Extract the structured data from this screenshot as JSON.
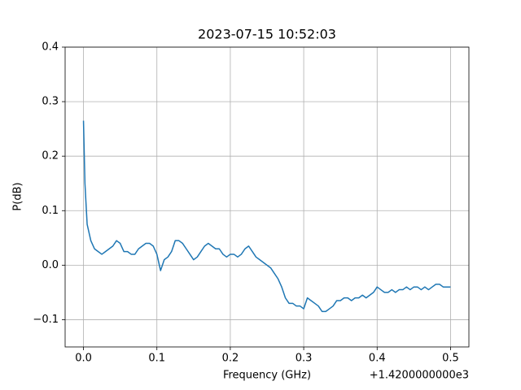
{
  "chart_data": {
    "type": "line",
    "title": "2023-07-15 10:52:03",
    "x_label": "Frequency (GHz)",
    "y_label": "P(dB)",
    "x_offset_label": "+1.4200000000e3",
    "grid": true,
    "xlim": [
      -0.025,
      0.525
    ],
    "ylim": [
      -0.15,
      0.4
    ],
    "xticks": [
      {
        "value": 0,
        "label": "0.0"
      },
      {
        "value": 0.1,
        "label": "0.1"
      },
      {
        "value": 0.2,
        "label": "0.2"
      },
      {
        "value": 0.3,
        "label": "0.3"
      },
      {
        "value": 0.4,
        "label": "0.4"
      },
      {
        "value": 0.5,
        "label": "0.5"
      }
    ],
    "yticks": [
      {
        "value": -0.1,
        "label": "−0.1"
      },
      {
        "value": 0,
        "label": "0.0"
      },
      {
        "value": 0.1,
        "label": "0.1"
      },
      {
        "value": 0.2,
        "label": "0.2"
      },
      {
        "value": 0.3,
        "label": "0.3"
      },
      {
        "value": 0.4,
        "label": "0.4"
      }
    ],
    "x": [
      0,
      0.002,
      0.005,
      0.01,
      0.015,
      0.02,
      0.025,
      0.03,
      0.035,
      0.04,
      0.045,
      0.05,
      0.055,
      0.06,
      0.065,
      0.07,
      0.075,
      0.08,
      0.085,
      0.09,
      0.095,
      0.1,
      0.105,
      0.11,
      0.115,
      0.12,
      0.125,
      0.13,
      0.135,
      0.14,
      0.145,
      0.15,
      0.155,
      0.16,
      0.165,
      0.17,
      0.175,
      0.18,
      0.185,
      0.19,
      0.195,
      0.2,
      0.205,
      0.21,
      0.215,
      0.22,
      0.225,
      0.23,
      0.235,
      0.24,
      0.245,
      0.25,
      0.255,
      0.26,
      0.265,
      0.27,
      0.275,
      0.28,
      0.285,
      0.29,
      0.295,
      0.3,
      0.305,
      0.31,
      0.315,
      0.32,
      0.325,
      0.33,
      0.335,
      0.34,
      0.345,
      0.35,
      0.355,
      0.36,
      0.365,
      0.37,
      0.375,
      0.38,
      0.385,
      0.39,
      0.395,
      0.4,
      0.405,
      0.41,
      0.415,
      0.42,
      0.425,
      0.43,
      0.435,
      0.44,
      0.445,
      0.45,
      0.455,
      0.46,
      0.465,
      0.47,
      0.475,
      0.48,
      0.485,
      0.49,
      0.495,
      0.5
    ],
    "series": [
      {
        "color": "#1f77b4",
        "values": [
          0.265,
          0.15,
          0.075,
          0.045,
          0.03,
          0.025,
          0.02,
          0.025,
          0.03,
          0.035,
          0.045,
          0.04,
          0.025,
          0.025,
          0.02,
          0.02,
          0.03,
          0.035,
          0.04,
          0.04,
          0.035,
          0.02,
          -0.01,
          0.01,
          0.015,
          0.025,
          0.045,
          0.045,
          0.04,
          0.03,
          0.02,
          0.01,
          0.015,
          0.025,
          0.035,
          0.04,
          0.035,
          0.03,
          0.03,
          0.02,
          0.015,
          0.02,
          0.02,
          0.015,
          0.02,
          0.03,
          0.035,
          0.025,
          0.015,
          0.01,
          0.005,
          0.0,
          -0.005,
          -0.015,
          -0.025,
          -0.04,
          -0.06,
          -0.07,
          -0.07,
          -0.075,
          -0.075,
          -0.08,
          -0.06,
          -0.065,
          -0.07,
          -0.075,
          -0.085,
          -0.085,
          -0.08,
          -0.075,
          -0.065,
          -0.065,
          -0.06,
          -0.06,
          -0.065,
          -0.06,
          -0.06,
          -0.055,
          -0.06,
          -0.055,
          -0.05,
          -0.04,
          -0.045,
          -0.05,
          -0.05,
          -0.045,
          -0.05,
          -0.045,
          -0.045,
          -0.04,
          -0.045,
          -0.04,
          -0.04,
          -0.045,
          -0.04,
          -0.045,
          -0.04,
          -0.035,
          -0.035,
          -0.04,
          -0.04,
          -0.04
        ]
      }
    ]
  }
}
